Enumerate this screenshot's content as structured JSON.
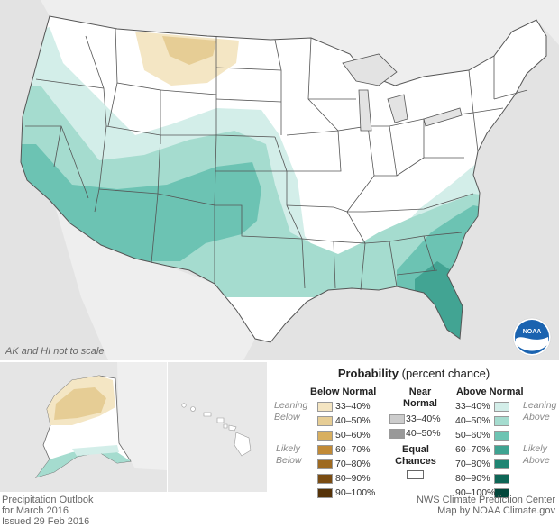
{
  "map": {
    "scale_note": "AK and HI not to scale",
    "colors": {
      "background": "#e3e3e3",
      "land": "#ffffff",
      "border": "#555555",
      "above_33_40": "#d2ede8",
      "above_40_50": "#a5dccf",
      "above_50_60": "#6cc3b3",
      "above_60_70": "#42a493",
      "below_33_40": "#f5e6c3",
      "below_40_50": "#e7cf96"
    }
  },
  "legend": {
    "title_bold": "Probability",
    "title_rest": "(percent chance)",
    "below": {
      "heading": "Below Normal",
      "ranges": [
        "33–40%",
        "40–50%",
        "50–60%",
        "60–70%",
        "70–80%",
        "80–90%",
        "90–100%"
      ],
      "colors": [
        "#f4e5c2",
        "#e6cd95",
        "#d8af5f",
        "#c18a36",
        "#9e6a20",
        "#7a4c12",
        "#553208"
      ]
    },
    "near": {
      "heading_line1": "Near",
      "heading_line2": "Normal",
      "ranges": [
        "33–40%",
        "40–50%"
      ],
      "colors": [
        "#cccccc",
        "#999999"
      ]
    },
    "equal": {
      "line1": "Equal",
      "line2": "Chances"
    },
    "above": {
      "heading": "Above Normal",
      "ranges": [
        "33–40%",
        "40–50%",
        "50–60%",
        "60–70%",
        "70–80%",
        "80–90%",
        "90–100%"
      ],
      "colors": [
        "#d3eee9",
        "#a5dccf",
        "#6dc4b3",
        "#3fa391",
        "#1f8573",
        "#0e6656",
        "#03473b"
      ]
    },
    "side_left": {
      "leaning_1": "Leaning",
      "leaning_2": "Below",
      "likely_1": "Likely",
      "likely_2": "Below"
    },
    "side_right": {
      "leaning_1": "Leaning",
      "leaning_2": "Above",
      "likely_1": "Likely",
      "likely_2": "Above"
    }
  },
  "footer": {
    "left_1": "Precipitation Outlook",
    "left_2": "for March 2016",
    "left_3": "Issued 29 Feb 2016",
    "right_1": "NWS Climate Prediction Center",
    "right_2": "Map by NOAA Climate.gov"
  }
}
